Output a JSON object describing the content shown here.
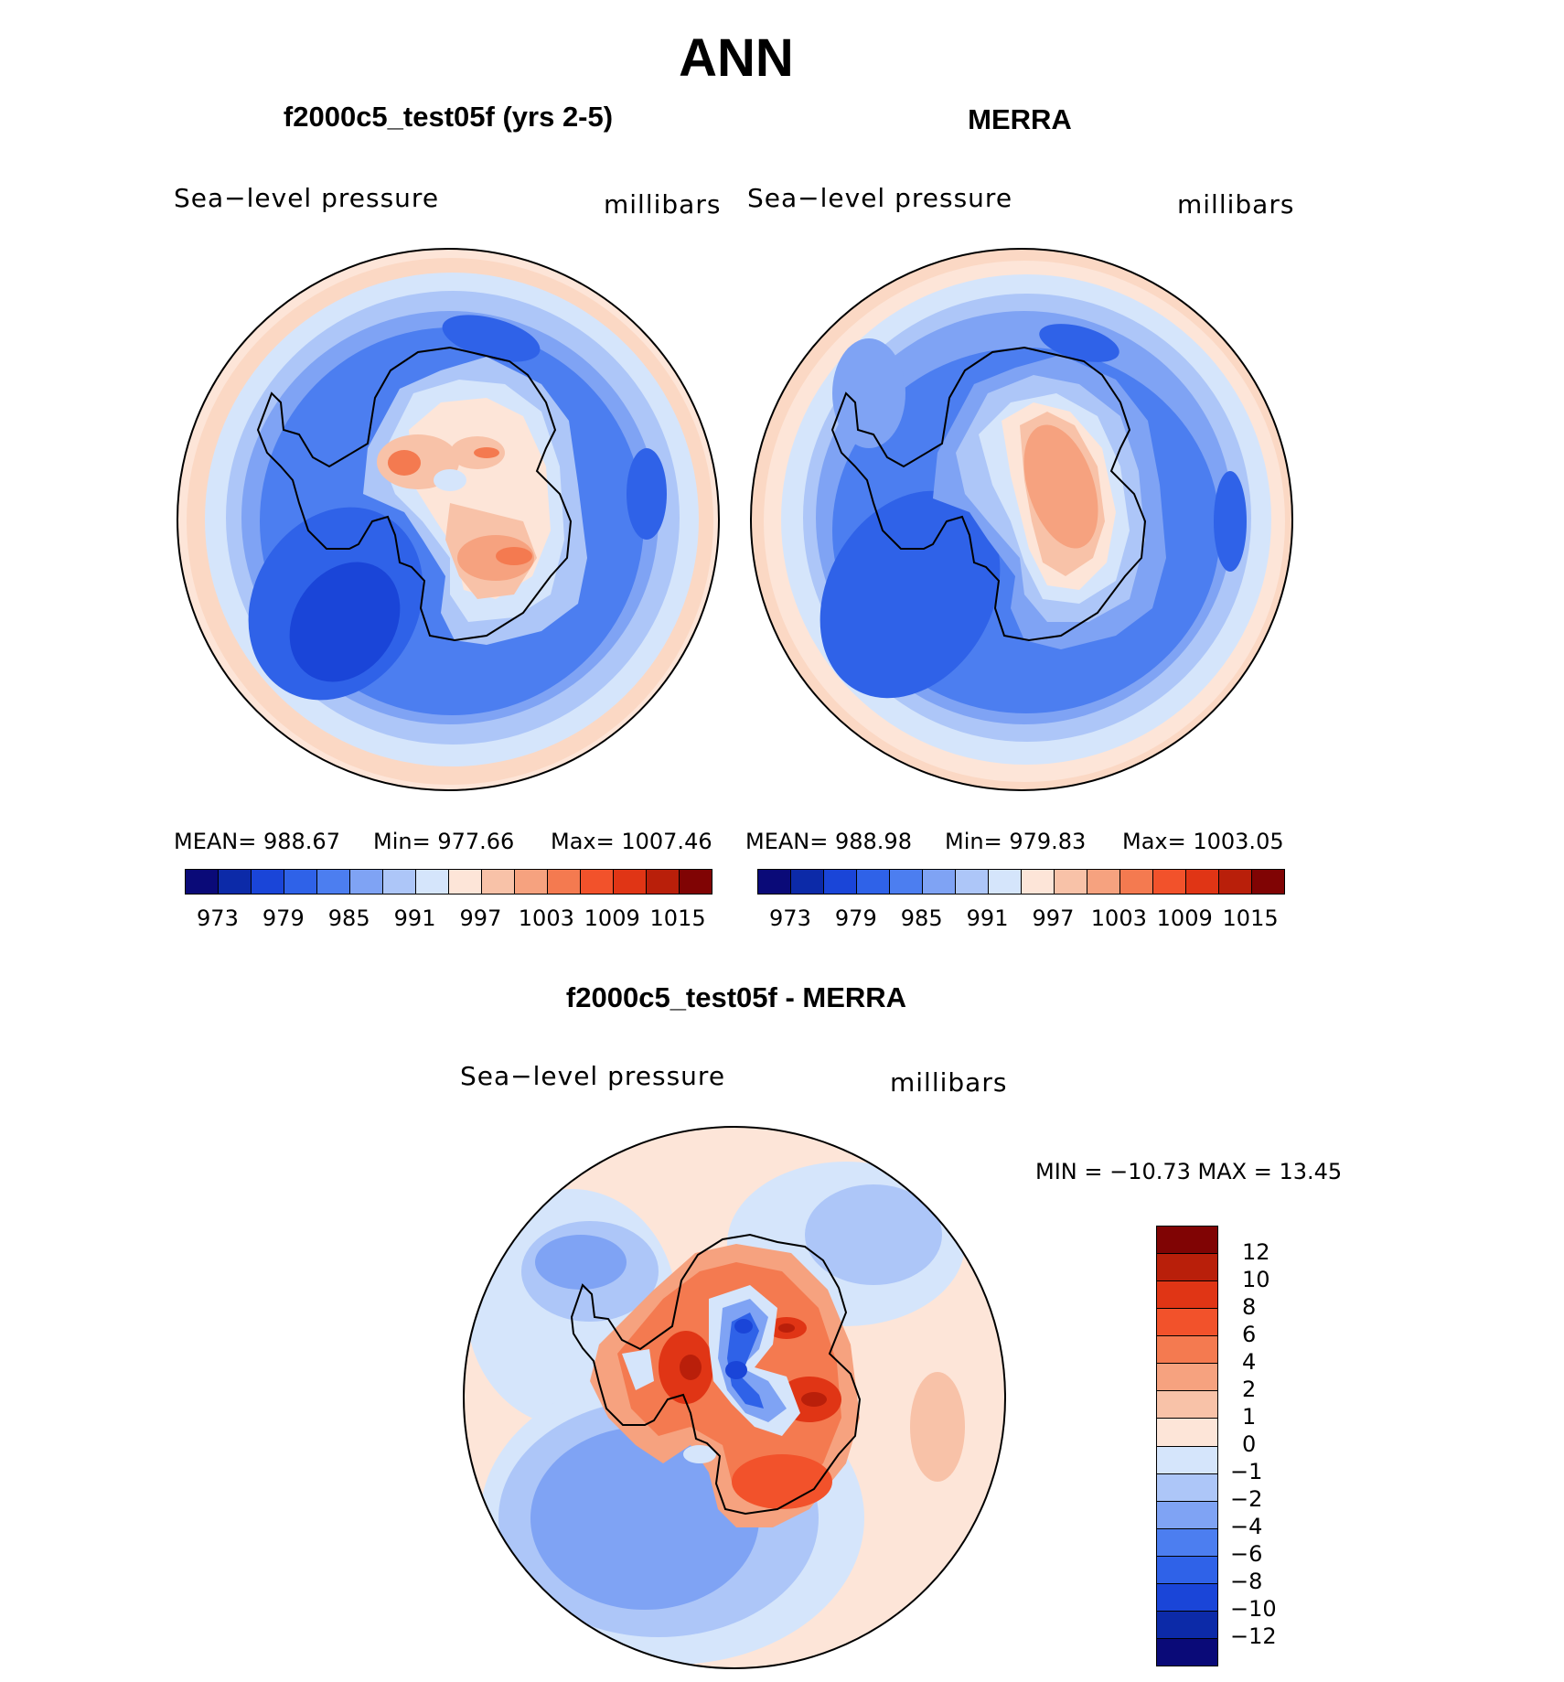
{
  "figure": {
    "title": "ANN"
  },
  "colors": {
    "abs_palette": [
      "#0a0a78",
      "#0c2aa8",
      "#1a45d8",
      "#2f62e8",
      "#4c7ef0",
      "#7fa3f4",
      "#adc6f8",
      "#d5e5fb",
      "#fde5d8",
      "#f8c2a8",
      "#f6a27f",
      "#f47a50",
      "#f2522b",
      "#e03515",
      "#b91f0a",
      "#800404"
    ],
    "diff_palette": [
      "#0a0a78",
      "#0c2aa8",
      "#1a45d8",
      "#2f62e8",
      "#4c7ef0",
      "#7fa3f4",
      "#adc6f8",
      "#d5e5fb",
      "#fde5d8",
      "#f8c2a8",
      "#f6a27f",
      "#f47a50",
      "#f2522b",
      "#e03515",
      "#b91f0a",
      "#800404"
    ]
  },
  "panels": {
    "model": {
      "title": "f2000c5_test05f (yrs 2-5)",
      "field": "Sea−level pressure",
      "units": "millibars",
      "mean": "MEAN=  988.67",
      "min": "Min=  977.66",
      "max": "Max=  1007.46"
    },
    "obs": {
      "title": "MERRA",
      "field": "Sea−level pressure",
      "units": "millibars",
      "mean": "MEAN=  988.98",
      "min": "Min=  979.83",
      "max": "Max=  1003.05"
    },
    "diff": {
      "title": "f2000c5_test05f - MERRA",
      "field": "Sea−level pressure",
      "units": "millibars",
      "minmax": "MIN  =  −10.73  MAX  =     13.45"
    }
  },
  "chart_data": [
    {
      "type": "heatmap",
      "projection": "south-polar-stereographic",
      "title": "f2000c5_test05f (yrs 2-5)",
      "variable": "Sea-level pressure",
      "units": "millibars",
      "mean": 988.67,
      "min": 977.66,
      "max": 1007.46,
      "colorbar_ticks": [
        "973",
        "979",
        "985",
        "991",
        "997",
        "1003",
        "1009",
        "1015"
      ]
    },
    {
      "type": "heatmap",
      "projection": "south-polar-stereographic",
      "title": "MERRA",
      "variable": "Sea-level pressure",
      "units": "millibars",
      "mean": 988.98,
      "min": 979.83,
      "max": 1003.05,
      "colorbar_ticks": [
        "973",
        "979",
        "985",
        "991",
        "997",
        "1003",
        "1009",
        "1015"
      ]
    },
    {
      "type": "heatmap",
      "projection": "south-polar-stereographic",
      "title": "f2000c5_test05f - MERRA",
      "variable": "Sea-level pressure",
      "units": "millibars",
      "min": -10.73,
      "max": 13.45,
      "colorbar_ticks": [
        "12",
        "10",
        "8",
        "6",
        "4",
        "2",
        "1",
        "0",
        "−1",
        "−2",
        "−4",
        "−6",
        "−8",
        "−10",
        "−12"
      ]
    }
  ]
}
